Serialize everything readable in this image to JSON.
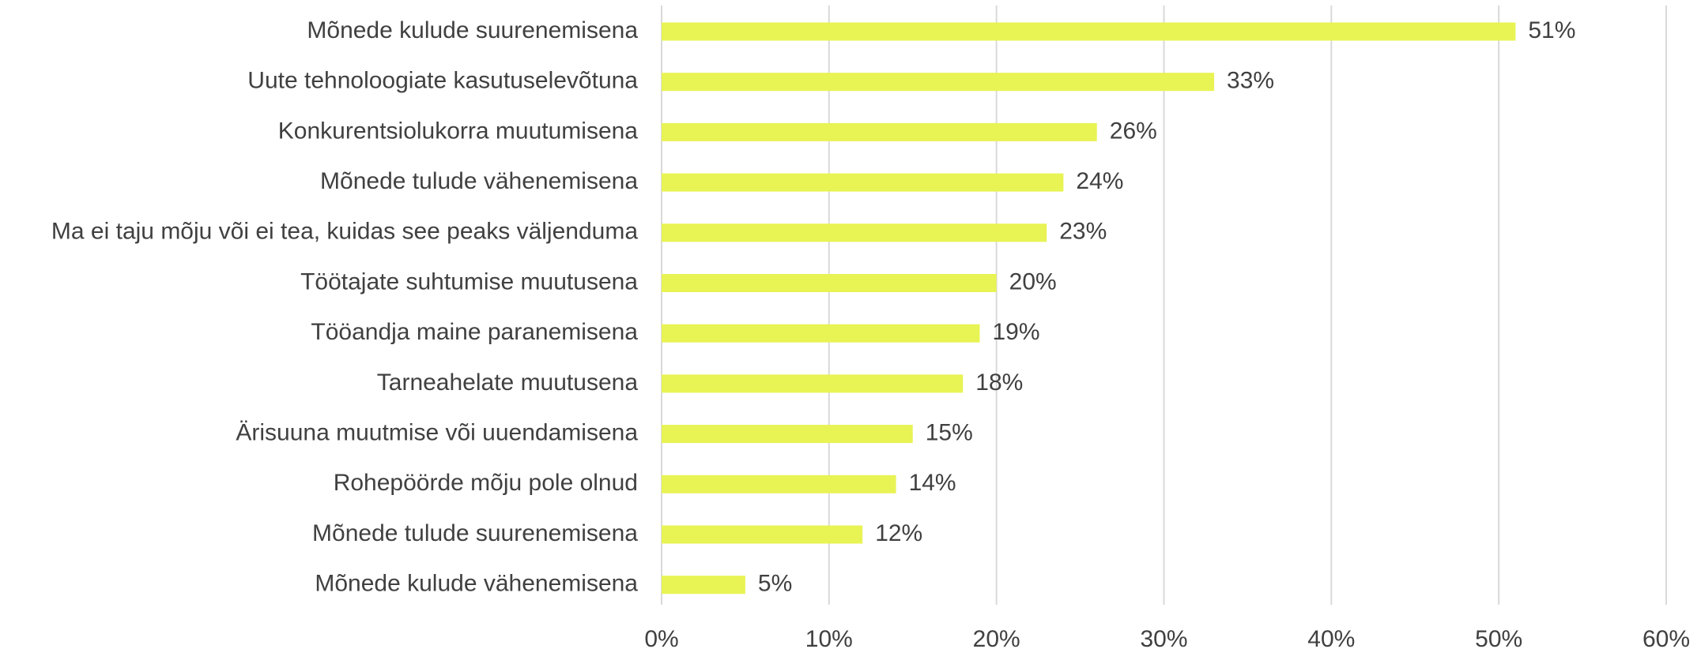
{
  "chart_data": {
    "type": "bar",
    "orientation": "horizontal",
    "categories": [
      "Mõnede kulude suurenemisena",
      "Uute tehnoloogiate kasutuselevõtuna",
      "Konkurentsiolukorra muutumisena",
      "Mõnede tulude vähenemisena",
      "Ma ei taju mõju või ei tea, kuidas see peaks väljenduma",
      "Töötajate suhtumise muutusena",
      "Tööandja maine paranemisena",
      "Tarneahelate muutusena",
      "Ärisuuna muutmise või uuendamisena",
      "Rohepöörde mõju pole olnud",
      "Mõnede tulude suurenemisena",
      "Mõnede kulude vähenemisena"
    ],
    "values": [
      51,
      33,
      26,
      24,
      23,
      20,
      19,
      18,
      15,
      14,
      12,
      5
    ],
    "value_labels": [
      "51%",
      "33%",
      "26%",
      "24%",
      "23%",
      "20%",
      "19%",
      "18%",
      "15%",
      "14%",
      "12%",
      "5%"
    ],
    "color": "#e8f354",
    "xlim": [
      0,
      60
    ],
    "xticks": [
      {
        "value": 0,
        "label": "0%"
      },
      {
        "value": 10,
        "label": "10%"
      },
      {
        "value": 20,
        "label": "20%"
      },
      {
        "value": 30,
        "label": "30%"
      },
      {
        "value": 40,
        "label": "40%"
      },
      {
        "value": 50,
        "label": "50%"
      },
      {
        "value": 60,
        "label": "60%"
      }
    ],
    "grid": true
  }
}
